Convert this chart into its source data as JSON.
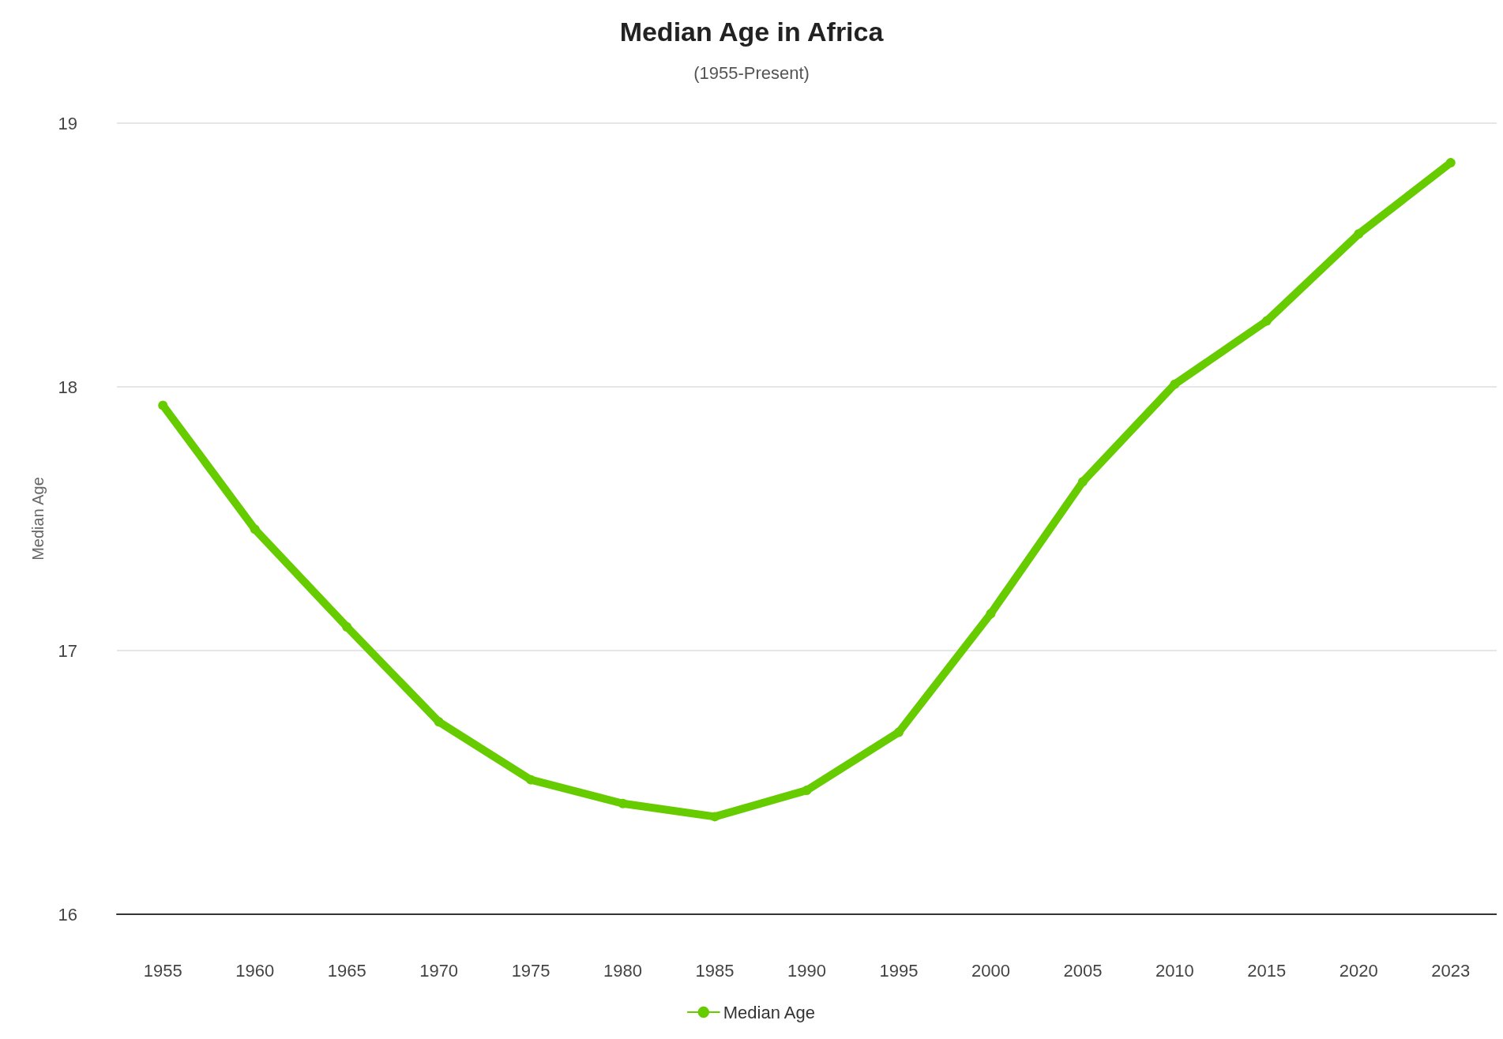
{
  "chart_data": {
    "type": "line",
    "title": "Median Age in Africa",
    "subtitle": "(1955-Present)",
    "ylabel": "Median Age",
    "categories": [
      "1955",
      "1960",
      "1965",
      "1970",
      "1975",
      "1980",
      "1985",
      "1990",
      "1995",
      "2000",
      "2005",
      "2010",
      "2015",
      "2020",
      "2023"
    ],
    "series": [
      {
        "name": "Median Age",
        "color": "#66cc00",
        "values": [
          17.93,
          17.46,
          17.09,
          16.73,
          16.51,
          16.42,
          16.37,
          16.47,
          16.69,
          17.14,
          17.64,
          18.01,
          18.25,
          18.58,
          18.85
        ]
      }
    ],
    "ylim": [
      16,
      19
    ],
    "yticks": [
      16,
      17,
      18,
      19
    ],
    "grid": "y",
    "legend": "bottom",
    "marker": "circle",
    "line_style": "solid"
  }
}
